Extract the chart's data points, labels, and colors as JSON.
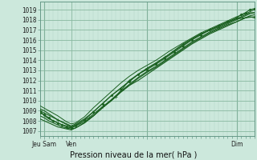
{
  "title": "Pression niveau de la mer( hPa )",
  "bg_color": "#cce8dc",
  "plot_bg_color": "#cce8dc",
  "grid_color_minor": "#b0d4c4",
  "grid_color_major": "#88b8a0",
  "line_colors": [
    "#1a6020",
    "#1a6020",
    "#1a6020",
    "#1a6020",
    "#1a6020",
    "#1a6020",
    "#1a6020"
  ],
  "yticks": [
    1007,
    1008,
    1009,
    1010,
    1011,
    1012,
    1013,
    1014,
    1015,
    1016,
    1017,
    1018,
    1019
  ],
  "ylim": [
    1006.5,
    1019.8
  ],
  "xlim": [
    0,
    96
  ],
  "xtick_positions": [
    2,
    14,
    48,
    88
  ],
  "xtick_labels": [
    "Jeu Sam",
    "Ven",
    "",
    "Dim"
  ],
  "lines": [
    {
      "x": [
        0,
        2,
        4,
        6,
        8,
        10,
        12,
        14,
        16,
        20,
        24,
        28,
        32,
        36,
        40,
        44,
        48,
        52,
        56,
        60,
        64,
        68,
        72,
        76,
        80,
        84,
        88,
        90,
        92,
        94,
        96
      ],
      "y": [
        1009.0,
        1008.5,
        1008.2,
        1008.0,
        1007.8,
        1007.6,
        1007.5,
        1007.4,
        1007.5,
        1007.9,
        1008.5,
        1009.3,
        1010.0,
        1010.8,
        1011.5,
        1012.2,
        1012.8,
        1013.3,
        1013.9,
        1014.5,
        1015.1,
        1015.7,
        1016.2,
        1016.7,
        1017.1,
        1017.5,
        1017.8,
        1018.0,
        1018.2,
        1018.4,
        1018.5
      ]
    },
    {
      "x": [
        0,
        2,
        4,
        6,
        8,
        10,
        12,
        14,
        16,
        20,
        24,
        28,
        32,
        36,
        40,
        44,
        48,
        52,
        56,
        60,
        64,
        68,
        72,
        76,
        80,
        84,
        88,
        90,
        92,
        94,
        96
      ],
      "y": [
        1008.5,
        1008.3,
        1008.0,
        1007.8,
        1007.6,
        1007.4,
        1007.3,
        1007.2,
        1007.3,
        1007.8,
        1008.5,
        1009.3,
        1010.0,
        1010.8,
        1011.5,
        1012.0,
        1012.6,
        1013.2,
        1013.8,
        1014.4,
        1015.0,
        1015.6,
        1016.1,
        1016.6,
        1017.0,
        1017.4,
        1017.8,
        1018.0,
        1018.2,
        1018.3,
        1018.2
      ]
    },
    {
      "x": [
        0,
        2,
        4,
        6,
        8,
        10,
        12,
        14,
        16,
        20,
        24,
        28,
        32,
        36,
        40,
        44,
        48,
        52,
        56,
        60,
        64,
        68,
        72,
        76,
        80,
        84,
        88,
        90,
        92,
        94,
        96
      ],
      "y": [
        1008.8,
        1008.6,
        1008.3,
        1008.0,
        1007.8,
        1007.6,
        1007.4,
        1007.3,
        1007.5,
        1008.1,
        1008.9,
        1009.7,
        1010.5,
        1011.2,
        1011.9,
        1012.6,
        1013.1,
        1013.6,
        1014.2,
        1014.8,
        1015.4,
        1016.0,
        1016.5,
        1017.0,
        1017.4,
        1017.8,
        1018.2,
        1018.5,
        1018.7,
        1019.0,
        1019.1
      ]
    },
    {
      "x": [
        0,
        2,
        4,
        6,
        8,
        10,
        12,
        14,
        16,
        20,
        24,
        28,
        32,
        36,
        40,
        44,
        48,
        52,
        56,
        60,
        64,
        68,
        72,
        76,
        80,
        84,
        88,
        90,
        92,
        94,
        96
      ],
      "y": [
        1008.2,
        1008.0,
        1007.8,
        1007.6,
        1007.4,
        1007.3,
        1007.2,
        1007.1,
        1007.3,
        1007.8,
        1008.5,
        1009.3,
        1010.1,
        1010.9,
        1011.6,
        1012.3,
        1012.9,
        1013.4,
        1014.0,
        1014.6,
        1015.2,
        1015.8,
        1016.3,
        1016.8,
        1017.2,
        1017.6,
        1018.0,
        1018.2,
        1018.4,
        1018.6,
        1018.7
      ]
    },
    {
      "x": [
        0,
        2,
        4,
        6,
        8,
        10,
        12,
        14,
        16,
        20,
        24,
        28,
        32,
        36,
        40,
        44,
        48,
        52,
        56,
        60,
        64,
        68,
        72,
        76,
        80,
        84,
        88,
        90,
        92,
        94,
        96
      ],
      "y": [
        1009.2,
        1009.0,
        1008.7,
        1008.4,
        1008.1,
        1007.9,
        1007.7,
        1007.5,
        1007.7,
        1008.2,
        1008.9,
        1009.7,
        1010.5,
        1011.2,
        1011.9,
        1012.6,
        1013.2,
        1013.7,
        1014.3,
        1014.9,
        1015.5,
        1016.1,
        1016.6,
        1017.0,
        1017.4,
        1017.8,
        1018.1,
        1018.3,
        1018.5,
        1018.7,
        1018.7
      ]
    },
    {
      "x": [
        0,
        4,
        8,
        12,
        14,
        16,
        20,
        24,
        28,
        32,
        36,
        40,
        44,
        48,
        52,
        58,
        64,
        68,
        72,
        76,
        80,
        84,
        88,
        92,
        96
      ],
      "y": [
        1009.5,
        1009.0,
        1008.5,
        1007.9,
        1007.7,
        1007.8,
        1008.4,
        1009.3,
        1010.1,
        1010.9,
        1011.7,
        1012.4,
        1013.0,
        1013.5,
        1014.0,
        1014.9,
        1015.7,
        1016.2,
        1016.7,
        1017.1,
        1017.5,
        1017.9,
        1018.3,
        1018.6,
        1019.0
      ]
    },
    {
      "x": [
        0,
        8,
        14,
        16,
        22,
        28,
        34,
        40,
        48,
        56,
        64,
        72,
        80,
        88,
        96
      ],
      "y": [
        1009.0,
        1008.1,
        1007.4,
        1007.6,
        1008.3,
        1009.4,
        1010.4,
        1012.0,
        1013.2,
        1014.3,
        1015.6,
        1016.6,
        1017.3,
        1018.1,
        1018.3
      ]
    }
  ]
}
